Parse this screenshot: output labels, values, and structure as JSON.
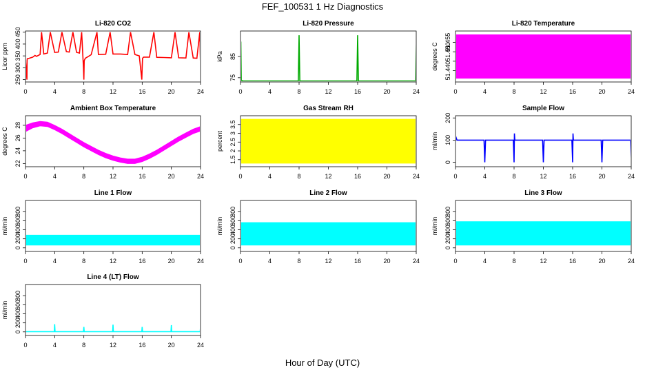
{
  "title": "FEF_100531  1 Hz Diagnostics",
  "xlabel": "Hour of Day (UTC)",
  "chart_data": [
    {
      "type": "line",
      "title": "Li-820 CO2",
      "ylabel": "Licor ppm",
      "color": "#ff0000",
      "xlim": [
        0,
        24
      ],
      "xticks": [
        0,
        4,
        8,
        12,
        16,
        20,
        24
      ],
      "ylim": [
        240,
        455
      ],
      "yticks": [
        250,
        300,
        350,
        400,
        450
      ],
      "series": [
        {
          "x": [
            0,
            0.2,
            0.22,
            0.25,
            0.5,
            1.0,
            1.3,
            1.5,
            2.0,
            2.2,
            2.5,
            3.0,
            3.4,
            4.0,
            4.5,
            5.0,
            5.6,
            6.0,
            6.5,
            7.0,
            7.4,
            7.7,
            7.95,
            8.0,
            8.05,
            8.2,
            9.0,
            9.8,
            10.0,
            11.0,
            11.6,
            12.0,
            13.0,
            14.0,
            14.4,
            15.0,
            15.6,
            15.95,
            16.0,
            16.05,
            16.2,
            17.0,
            17.6,
            18.0,
            19.0,
            20.0,
            20.5,
            21.0,
            22.0,
            22.4,
            23.0,
            23.5,
            23.9,
            24.0
          ],
          "y": [
            332,
            250,
            330,
            338,
            340,
            345,
            352,
            348,
            356,
            450,
            358,
            362,
            450,
            365,
            366,
            450,
            368,
            366,
            450,
            365,
            362,
            450,
            300,
            250,
            330,
            340,
            355,
            450,
            356,
            357,
            450,
            358,
            358,
            356,
            450,
            356,
            350,
            250,
            300,
            340,
            345,
            345,
            450,
            344,
            343,
            342,
            450,
            342,
            341,
            450,
            341,
            340,
            450,
            300
          ]
        }
      ]
    },
    {
      "type": "line",
      "title": "Li-820 Pressure",
      "ylabel": "kPa",
      "color": "#00aa00",
      "xlim": [
        0,
        24
      ],
      "xticks": [
        0,
        4,
        8,
        12,
        16,
        20,
        24
      ],
      "ylim": [
        73,
        97
      ],
      "yticks": [
        75,
        85
      ],
      "series": [
        {
          "x": [
            0,
            0.05,
            0.1,
            0.3,
            4,
            7.9,
            8.0,
            8.1,
            12,
            15.9,
            16.0,
            16.1,
            20,
            23.9,
            24.0
          ],
          "y": [
            73.8,
            92,
            73.8,
            73.5,
            73.5,
            73.5,
            95,
            73.5,
            73.5,
            73.5,
            95,
            73.5,
            73.5,
            73.5,
            95
          ]
        }
      ]
    },
    {
      "type": "area",
      "title": "Li-820 Temperature",
      "ylabel": "degrees C",
      "color": "#ff00ff",
      "xlim": [
        0,
        24
      ],
      "xticks": [
        0,
        4,
        8,
        12,
        16,
        20,
        24
      ],
      "ylim": [
        51.434,
        51.461
      ],
      "yticks": [
        51.44,
        51.445,
        51.45,
        51.455
      ],
      "ytick_labels": [
        "51.440",
        "",
        "51.450",
        "51.455"
      ],
      "series": [
        {
          "x": [
            0,
            24
          ],
          "ymin": [
            51.436,
            51.436
          ],
          "ymax": [
            51.459,
            51.459
          ]
        }
      ]
    },
    {
      "type": "area",
      "title": "Ambient Box Temperature",
      "ylabel": "degrees C",
      "color": "#ff00ff",
      "xlim": [
        0,
        24
      ],
      "xticks": [
        0,
        4,
        8,
        12,
        16,
        20,
        24
      ],
      "ylim": [
        21.5,
        29.5
      ],
      "yticks": [
        22,
        24,
        26,
        28
      ],
      "series": [
        {
          "x": [
            0,
            1,
            2,
            3,
            4,
            5,
            6,
            7,
            8,
            9,
            10,
            11,
            12,
            13,
            14,
            15,
            16,
            17,
            18,
            19,
            20,
            21,
            22,
            23,
            24
          ],
          "ymin": [
            27.0,
            27.6,
            27.9,
            27.8,
            27.3,
            26.7,
            26.0,
            25.3,
            24.6,
            24.0,
            23.4,
            22.9,
            22.5,
            22.2,
            22.0,
            22.0,
            22.3,
            22.8,
            23.4,
            24.1,
            24.8,
            25.5,
            26.1,
            26.7,
            27.1
          ],
          "ymax": [
            28.0,
            28.4,
            28.6,
            28.5,
            28.0,
            27.4,
            26.7,
            26.0,
            25.3,
            24.7,
            24.1,
            23.6,
            23.2,
            22.9,
            22.7,
            22.7,
            23.0,
            23.5,
            24.1,
            24.8,
            25.5,
            26.2,
            26.8,
            27.4,
            27.8
          ]
        }
      ]
    },
    {
      "type": "area",
      "title": "Gas Stream RH",
      "ylabel": "percent",
      "color": "#ffff00",
      "xlim": [
        0,
        24
      ],
      "xticks": [
        0,
        4,
        8,
        12,
        16,
        20,
        24
      ],
      "ylim": [
        1.1,
        4.0
      ],
      "yticks": [
        1.5,
        2.0,
        2.5,
        3.0,
        3.5
      ],
      "series": [
        {
          "x": [
            0,
            24
          ],
          "ymin": [
            1.3,
            1.3
          ],
          "ymax": [
            3.8,
            3.8
          ]
        }
      ]
    },
    {
      "type": "line",
      "title": "Sample Flow",
      "ylabel": "ml/min",
      "color": "#0000ff",
      "xlim": [
        0,
        24
      ],
      "xticks": [
        0,
        4,
        8,
        12,
        16,
        20,
        24
      ],
      "ylim": [
        -20,
        210
      ],
      "yticks": [
        0,
        100,
        200
      ],
      "series": [
        {
          "x": [
            0,
            0.1,
            0.2,
            0.5,
            3.9,
            4.0,
            4.1,
            7.9,
            8.0,
            8.05,
            8.1,
            11.9,
            12.0,
            12.1,
            15.9,
            16.0,
            16.05,
            16.1,
            19.9,
            20.0,
            20.1,
            23.9,
            24.0
          ],
          "y": [
            120,
            110,
            100,
            100,
            100,
            0,
            100,
            100,
            0,
            130,
            100,
            100,
            0,
            100,
            100,
            0,
            130,
            100,
            100,
            0,
            100,
            100,
            0
          ]
        }
      ]
    },
    {
      "type": "area",
      "title": "Line 1 Flow",
      "ylabel": "ml/min",
      "color": "#00ffff",
      "xlim": [
        0,
        24
      ],
      "xticks": [
        0,
        4,
        8,
        12,
        16,
        20,
        24
      ],
      "ylim": [
        -80,
        1050
      ],
      "yticks": [
        0,
        200,
        400,
        600,
        800
      ],
      "series": [
        {
          "x": [
            0,
            24
          ],
          "ymin": [
            60,
            60
          ],
          "ymax": [
            280,
            280
          ]
        }
      ]
    },
    {
      "type": "area",
      "title": "Line 2 Flow",
      "ylabel": "ml/min",
      "color": "#00ffff",
      "xlim": [
        0,
        24
      ],
      "xticks": [
        0,
        4,
        8,
        12,
        16,
        20,
        24
      ],
      "ylim": [
        -80,
        1050
      ],
      "yticks": [
        0,
        200,
        400,
        600,
        800
      ],
      "series": [
        {
          "x": [
            0,
            24
          ],
          "ymin": [
            60,
            60
          ],
          "ymax": [
            560,
            560
          ]
        }
      ]
    },
    {
      "type": "area",
      "title": "Line 3 Flow",
      "ylabel": "ml/min",
      "color": "#00ffff",
      "xlim": [
        0,
        24
      ],
      "xticks": [
        0,
        4,
        8,
        12,
        16,
        20,
        24
      ],
      "ylim": [
        -80,
        1050
      ],
      "yticks": [
        0,
        200,
        400,
        600,
        800
      ],
      "series": [
        {
          "x": [
            0,
            24
          ],
          "ymin": [
            60,
            60
          ],
          "ymax": [
            580,
            580
          ]
        }
      ]
    },
    {
      "type": "line",
      "title": "Line 4 (LT) Flow",
      "ylabel": "ml/min",
      "color": "#00ffff",
      "xlim": [
        0,
        24
      ],
      "xticks": [
        0,
        4,
        8,
        12,
        16,
        20,
        24
      ],
      "ylim": [
        -80,
        1050
      ],
      "yticks": [
        0,
        200,
        400,
        600,
        800
      ],
      "series": [
        {
          "x": [
            0,
            3.95,
            4.0,
            4.05,
            7.95,
            8.0,
            8.05,
            11.95,
            12.0,
            12.05,
            15.95,
            16.0,
            16.05,
            19.95,
            20.0,
            20.05,
            23.95,
            24.0
          ],
          "y": [
            5,
            5,
            170,
            5,
            5,
            110,
            5,
            5,
            160,
            5,
            5,
            110,
            5,
            5,
            150,
            5,
            5,
            120
          ]
        }
      ]
    }
  ]
}
